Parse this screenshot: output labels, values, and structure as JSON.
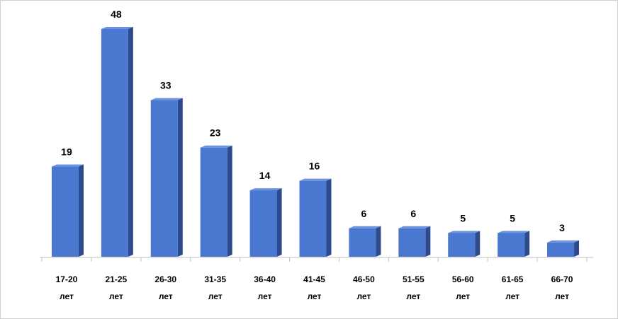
{
  "chart_data": {
    "type": "bar3d",
    "categories": [
      "17-20 лет",
      "21-25 лет",
      "26-30 лет",
      "31-35 лет",
      "36-40 лет",
      "41-45 лет",
      "46-50 лет",
      "51-55 лет",
      "56-60 лет",
      "61-65 лет",
      "66-70 лет"
    ],
    "values": [
      19,
      48,
      33,
      23,
      14,
      16,
      6,
      6,
      5,
      5,
      3
    ],
    "color": "#4a78d0",
    "side_color": "#2c4a8c",
    "top_color": "#6d93dc"
  }
}
